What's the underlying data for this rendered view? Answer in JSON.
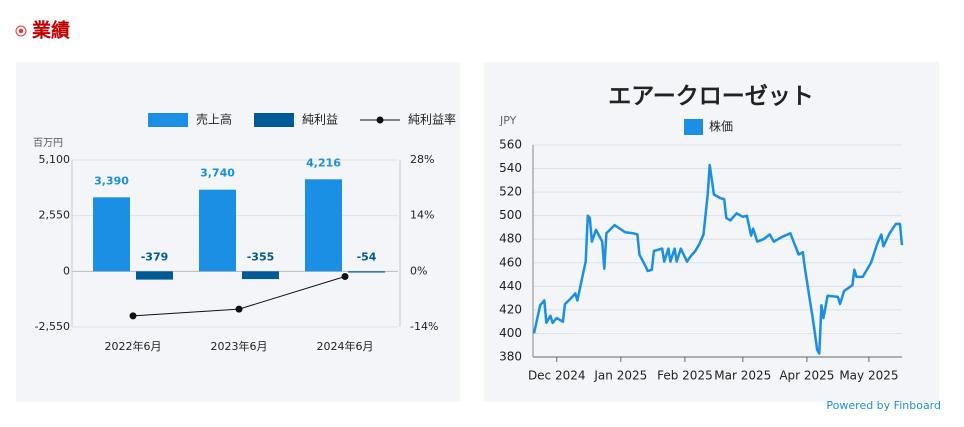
{
  "header": "業績",
  "footer": "Powered by Finboard",
  "chart_data": [
    {
      "type": "bar",
      "y_label": "百万円",
      "categories": [
        "2022年6月",
        "2023年6月",
        "2024年6月"
      ],
      "series": [
        {
          "name": "売上高",
          "color": "#1a8fe3",
          "values": [
            3390,
            3740,
            4216
          ],
          "value_labels": [
            "3,390",
            "3,740",
            "4,216"
          ]
        },
        {
          "name": "純利益",
          "color": "#005a96",
          "values": [
            -379,
            -355,
            -54
          ]
        },
        {
          "name": "純利益率",
          "color": "#111111",
          "type": "line",
          "axis": "y2",
          "values": [
            -11.2,
            -9.5,
            -1.3
          ]
        }
      ],
      "ylim": [
        -2550,
        5100
      ],
      "yticks": [
        {
          "value": -2550,
          "label": "-2,550"
        },
        0,
        {
          "value": 2550,
          "label": "2,550"
        },
        {
          "value": 5100,
          "label": "5,100"
        }
      ],
      "y2lim": [
        -14,
        28
      ],
      "y2ticks": [
        {
          "value": -14,
          "label": "-14%"
        },
        {
          "value": 0,
          "label": "0%"
        },
        {
          "value": 14,
          "label": "14%"
        },
        {
          "value": 28,
          "label": "28%"
        }
      ],
      "grid": true
    },
    {
      "type": "line",
      "title": "エアークローゼット",
      "y_label": "JPY",
      "x": [
        "2024-11-20",
        "2024-11-23",
        "2024-11-25",
        "2024-11-26",
        "2024-11-28",
        "2024-11-29",
        "2024-12-01",
        "2024-12-04",
        "2024-12-05",
        "2024-12-08",
        "2024-12-10",
        "2024-12-11",
        "2024-12-13",
        "2024-12-15",
        "2024-12-16",
        "2024-12-17",
        "2024-12-18",
        "2024-12-20",
        "2024-12-23",
        "2024-12-24",
        "2024-12-25",
        "2024-12-29",
        "2025-01-03",
        "2025-01-07",
        "2025-01-09",
        "2025-01-10",
        "2025-01-13",
        "2025-01-14",
        "2025-01-16",
        "2025-01-17",
        "2025-01-21",
        "2025-01-22",
        "2025-01-24",
        "2025-01-25",
        "2025-01-27",
        "2025-01-28",
        "2025-01-30",
        "2025-02-02",
        "2025-02-04",
        "2025-02-06",
        "2025-02-08",
        "2025-02-10",
        "2025-02-12",
        "2025-02-13",
        "2025-02-15",
        "2025-02-18",
        "2025-02-20",
        "2025-02-21",
        "2025-02-23",
        "2025-02-26",
        "2025-03-01",
        "2025-03-03",
        "2025-03-05",
        "2025-03-06",
        "2025-03-08",
        "2025-03-11",
        "2025-03-14",
        "2025-03-16",
        "2025-03-20",
        "2025-03-24",
        "2025-03-26",
        "2025-03-28",
        "2025-03-30",
        "2025-03-31",
        "2025-04-02",
        "2025-04-04",
        "2025-04-06",
        "2025-04-07",
        "2025-04-08",
        "2025-04-09",
        "2025-04-11",
        "2025-04-16",
        "2025-04-17",
        "2025-04-19",
        "2025-04-23",
        "2025-04-24",
        "2025-04-25",
        "2025-04-28",
        "2025-04-30",
        "2025-05-02",
        "2025-05-05",
        "2025-05-07",
        "2025-05-08",
        "2025-05-11",
        "2025-05-14",
        "2025-05-16",
        "2025-05-17"
      ],
      "series": [
        {
          "name": "株価",
          "color": "#1a8fe3",
          "values": [
            400,
            424,
            428,
            409,
            415,
            409,
            413,
            410,
            425,
            430,
            434,
            428,
            445,
            461,
            500,
            498,
            478,
            488,
            478,
            455,
            485,
            492,
            486,
            485,
            484,
            467,
            457,
            453,
            454,
            470,
            472,
            461,
            472,
            461,
            472,
            461,
            472,
            461,
            466,
            470,
            476,
            484,
            518,
            543,
            518,
            515,
            514,
            498,
            496,
            502,
            499,
            500,
            483,
            489,
            478,
            480,
            484,
            478,
            482,
            485,
            476,
            467,
            469,
            456,
            433,
            411,
            386,
            383,
            424,
            413,
            432,
            431,
            425,
            436,
            441,
            454,
            448,
            448,
            454,
            460,
            476,
            484,
            474,
            485,
            493,
            493,
            475
          ]
        }
      ],
      "xlim": [
        "2024-11-20",
        "2025-05-17"
      ],
      "xticks": [
        {
          "value": "2024-12-01",
          "label": "Dec 2024"
        },
        {
          "value": "2025-01-01",
          "label": "Jan 2025"
        },
        {
          "value": "2025-02-01",
          "label": "Feb 2025"
        },
        {
          "value": "2025-03-01",
          "label": "Mar 2025"
        },
        {
          "value": "2025-04-01",
          "label": "Apr 2025"
        },
        {
          "value": "2025-05-01",
          "label": "May 2025"
        }
      ],
      "ylim": [
        380,
        560
      ],
      "yticks": [
        380,
        400,
        420,
        440,
        460,
        480,
        500,
        520,
        540,
        560
      ],
      "grid": true
    }
  ]
}
